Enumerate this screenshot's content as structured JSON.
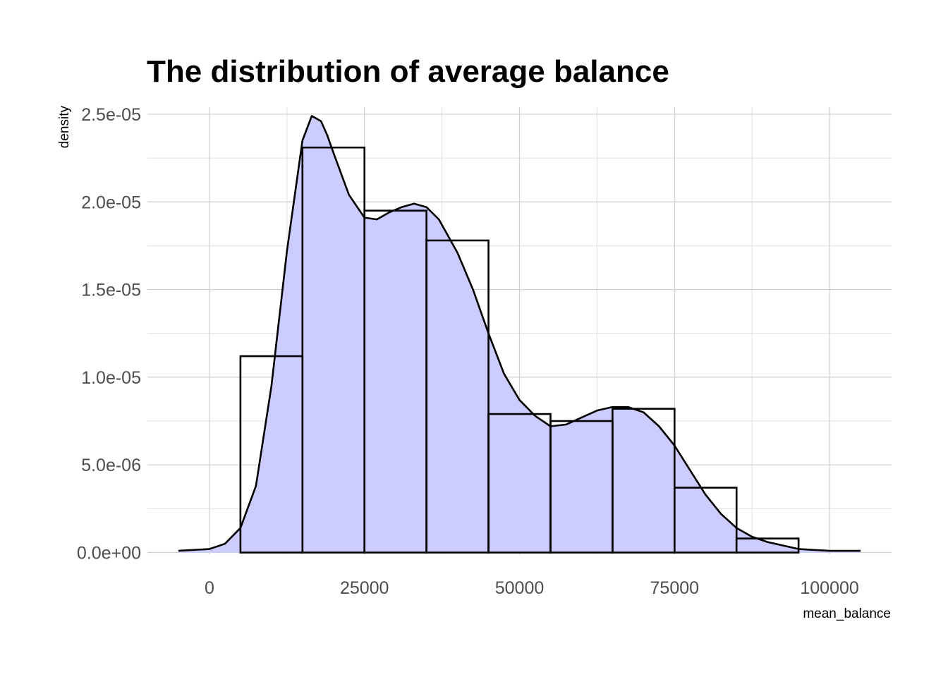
{
  "chart_data": {
    "type": "histogram",
    "title": "The distribution of average balance",
    "xlabel": "mean_balance",
    "ylabel": "density",
    "xlim": [
      -10000,
      110000
    ],
    "ylim": [
      -1e-07,
      2.54e-05
    ],
    "x_ticks": [
      0,
      25000,
      50000,
      75000,
      100000
    ],
    "x_tick_labels": [
      "0",
      "25000",
      "50000",
      "75000",
      "100000"
    ],
    "y_ticks": [
      0,
      5e-06,
      1e-05,
      1.5e-05,
      2e-05,
      2.5e-05
    ],
    "y_tick_labels": [
      "0.0e+00",
      "5.0e-06",
      "1.0e-05",
      "1.5e-05",
      "2.0e-05",
      "2.5e-05"
    ],
    "grid": true,
    "bin_width": 10000,
    "bins": [
      {
        "x0": 5000,
        "x1": 15000,
        "density": 1.12e-05
      },
      {
        "x0": 15000,
        "x1": 25000,
        "density": 2.31e-05
      },
      {
        "x0": 25000,
        "x1": 35000,
        "density": 1.95e-05
      },
      {
        "x0": 35000,
        "x1": 45000,
        "density": 1.78e-05
      },
      {
        "x0": 45000,
        "x1": 55000,
        "density": 7.9e-06
      },
      {
        "x0": 55000,
        "x1": 65000,
        "density": 7.5e-06
      },
      {
        "x0": 65000,
        "x1": 75000,
        "density": 8.2e-06
      },
      {
        "x0": 75000,
        "x1": 85000,
        "density": 3.7e-06
      },
      {
        "x0": 85000,
        "x1": 95000,
        "density": 8e-07
      }
    ],
    "density_curve": {
      "x": [
        -5000,
        0,
        2500,
        5000,
        7500,
        10000,
        12500,
        15000,
        16500,
        18000,
        19000,
        20000,
        22500,
        25000,
        27000,
        29000,
        31000,
        33000,
        35000,
        37000,
        40000,
        42500,
        45000,
        47500,
        50000,
        52500,
        55000,
        57500,
        60000,
        62500,
        65000,
        67500,
        70000,
        72500,
        75000,
        77500,
        80000,
        82500,
        85000,
        87500,
        90000,
        95000,
        100000,
        105000
      ],
      "y": [
        1e-07,
        2e-07,
        5e-07,
        1.4e-06,
        3.8e-06,
        9.5e-06,
        1.72e-05,
        2.35e-05,
        2.49e-05,
        2.46e-05,
        2.38e-05,
        2.28e-05,
        2.04e-05,
        1.91e-05,
        1.9e-05,
        1.94e-05,
        1.97e-05,
        1.99e-05,
        1.97e-05,
        1.9e-05,
        1.71e-05,
        1.5e-05,
        1.25e-05,
        1.02e-05,
        8.7e-06,
        7.8e-06,
        7.2e-06,
        7.3e-06,
        7.7e-06,
        8.1e-06,
        8.3e-06,
        8.3e-06,
        8e-06,
        7.2e-06,
        6.1e-06,
        4.7e-06,
        3.3e-06,
        2.2e-06,
        1.4e-06,
        9e-07,
        6e-07,
        2e-07,
        1e-07,
        1e-07
      ]
    },
    "colors": {
      "density_fill": "#ccccff",
      "outline": "#000000",
      "grid": "#cfcfcf",
      "tick_text": "#4d4d4d"
    }
  }
}
